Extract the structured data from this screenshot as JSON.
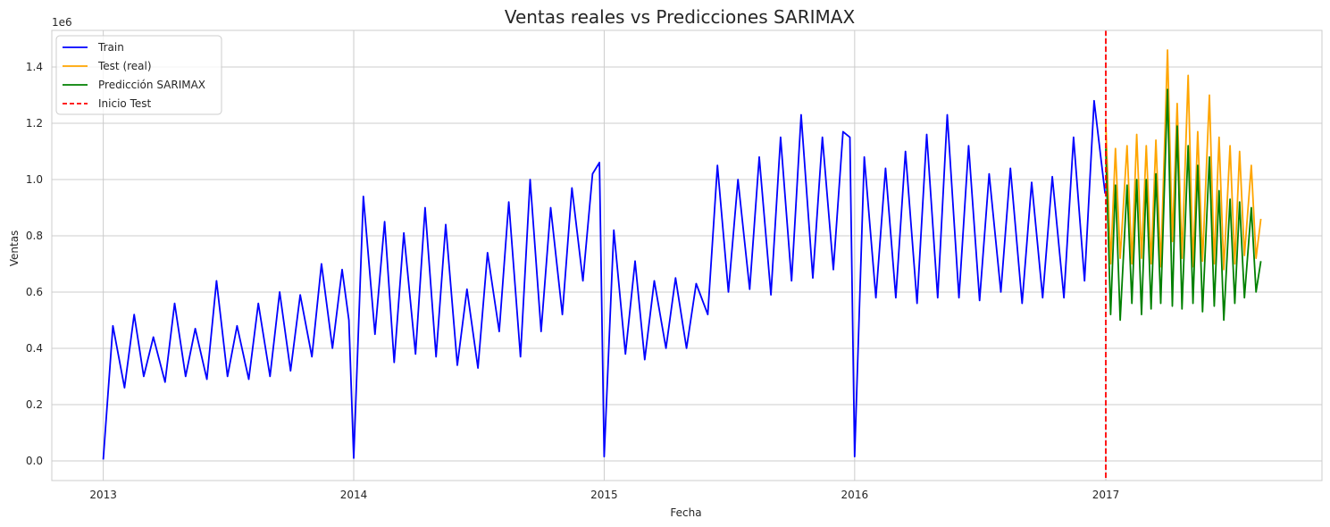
{
  "chart_data": {
    "type": "line",
    "title": "Ventas reales vs Predicciones SARIMAX",
    "xlabel": "Fecha",
    "ylabel": "Ventas",
    "y_offset_label": "1e6",
    "x_ticks": [
      "2013",
      "2014",
      "2015",
      "2016",
      "2017"
    ],
    "y_ticks": [
      "0.0",
      "0.2",
      "0.4",
      "0.6",
      "0.8",
      "1.0",
      "1.2",
      "1.4"
    ],
    "xlim": [
      "2012-10-18",
      "2017-11-12"
    ],
    "ylim": [
      -70000,
      1530000
    ],
    "grid": true,
    "legend_position": "top-left",
    "colors": {
      "train": "#0000ff",
      "test": "#ffa500",
      "prediction": "#008000",
      "start_line": "#ff0000",
      "grid": "#cccccc",
      "axes": "#cccccc"
    },
    "legend": [
      {
        "label": "Train",
        "color": "#0000ff",
        "style": "solid"
      },
      {
        "label": "Test (real)",
        "color": "#ffa500",
        "style": "solid"
      },
      {
        "label": "Predicción SARIMAX",
        "color": "#008000",
        "style": "solid"
      },
      {
        "label": "Inicio Test",
        "color": "#ff0000",
        "style": "dashed"
      }
    ],
    "test_start": "2017-01-01",
    "series": [
      {
        "name": "Train",
        "x": [
          "2013-01-01",
          "2013-01-15",
          "2013-02-01",
          "2013-02-15",
          "2013-03-01",
          "2013-03-15",
          "2013-04-01",
          "2013-04-15",
          "2013-05-01",
          "2013-05-15",
          "2013-06-01",
          "2013-06-15",
          "2013-07-01",
          "2013-07-15",
          "2013-08-01",
          "2013-08-15",
          "2013-09-01",
          "2013-09-15",
          "2013-10-01",
          "2013-10-15",
          "2013-11-01",
          "2013-11-15",
          "2013-12-01",
          "2013-12-15",
          "2013-12-25",
          "2014-01-01",
          "2014-01-15",
          "2014-02-01",
          "2014-02-15",
          "2014-03-01",
          "2014-03-15",
          "2014-04-01",
          "2014-04-15",
          "2014-05-01",
          "2014-05-15",
          "2014-06-01",
          "2014-06-15",
          "2014-07-01",
          "2014-07-15",
          "2014-08-01",
          "2014-08-15",
          "2014-09-01",
          "2014-09-15",
          "2014-10-01",
          "2014-10-15",
          "2014-11-01",
          "2014-11-15",
          "2014-12-01",
          "2014-12-15",
          "2014-12-25",
          "2015-01-01",
          "2015-01-15",
          "2015-02-01",
          "2015-02-15",
          "2015-03-01",
          "2015-03-15",
          "2015-04-01",
          "2015-04-15",
          "2015-05-01",
          "2015-05-15",
          "2015-06-01",
          "2015-06-15",
          "2015-07-01",
          "2015-07-15",
          "2015-08-01",
          "2015-08-15",
          "2015-09-01",
          "2015-09-15",
          "2015-10-01",
          "2015-10-15",
          "2015-11-01",
          "2015-11-15",
          "2015-12-01",
          "2015-12-15",
          "2015-12-25",
          "2016-01-01",
          "2016-01-15",
          "2016-02-01",
          "2016-02-15",
          "2016-03-01",
          "2016-03-15",
          "2016-04-01",
          "2016-04-15",
          "2016-05-01",
          "2016-05-15",
          "2016-06-01",
          "2016-06-15",
          "2016-07-01",
          "2016-07-15",
          "2016-08-01",
          "2016-08-15",
          "2016-09-01",
          "2016-09-15",
          "2016-10-01",
          "2016-10-15",
          "2016-11-01",
          "2016-11-15",
          "2016-12-01",
          "2016-12-15",
          "2016-12-31"
        ],
        "y": [
          5000,
          480000,
          260000,
          520000,
          300000,
          440000,
          280000,
          560000,
          300000,
          470000,
          290000,
          640000,
          300000,
          480000,
          290000,
          560000,
          300000,
          600000,
          320000,
          590000,
          370000,
          700000,
          400000,
          680000,
          500000,
          10000,
          940000,
          450000,
          850000,
          350000,
          810000,
          380000,
          900000,
          370000,
          840000,
          340000,
          610000,
          330000,
          740000,
          460000,
          920000,
          370000,
          1000000,
          460000,
          900000,
          520000,
          970000,
          640000,
          1020000,
          1060000,
          15000,
          820000,
          380000,
          710000,
          360000,
          640000,
          400000,
          650000,
          400000,
          630000,
          520000,
          1050000,
          600000,
          1000000,
          610000,
          1080000,
          590000,
          1150000,
          640000,
          1230000,
          650000,
          1150000,
          680000,
          1170000,
          1150000,
          15000,
          1080000,
          580000,
          1040000,
          580000,
          1100000,
          560000,
          1160000,
          580000,
          1230000,
          580000,
          1120000,
          570000,
          1020000,
          600000,
          1040000,
          560000,
          990000,
          580000,
          1010000,
          580000,
          1150000,
          640000,
          1280000,
          950000
        ]
      },
      {
        "name": "Test (real)",
        "x": [
          "2017-01-01",
          "2017-01-08",
          "2017-01-15",
          "2017-01-22",
          "2017-02-01",
          "2017-02-08",
          "2017-02-15",
          "2017-02-22",
          "2017-03-01",
          "2017-03-08",
          "2017-03-15",
          "2017-03-22",
          "2017-04-01",
          "2017-04-08",
          "2017-04-15",
          "2017-04-22",
          "2017-05-01",
          "2017-05-08",
          "2017-05-15",
          "2017-05-22",
          "2017-06-01",
          "2017-06-08",
          "2017-06-15",
          "2017-06-22",
          "2017-07-01",
          "2017-07-08",
          "2017-07-15",
          "2017-07-22",
          "2017-08-01",
          "2017-08-08",
          "2017-08-15"
        ],
        "y": [
          1200000,
          700000,
          1110000,
          720000,
          1120000,
          700000,
          1160000,
          720000,
          1120000,
          700000,
          1140000,
          690000,
          1460000,
          780000,
          1270000,
          720000,
          1370000,
          690000,
          1170000,
          710000,
          1300000,
          700000,
          1150000,
          680000,
          1120000,
          700000,
          1100000,
          730000,
          1050000,
          720000,
          860000
        ]
      },
      {
        "name": "Predicción SARIMAX",
        "x": [
          "2017-01-01",
          "2017-01-08",
          "2017-01-15",
          "2017-01-22",
          "2017-02-01",
          "2017-02-08",
          "2017-02-15",
          "2017-02-22",
          "2017-03-01",
          "2017-03-08",
          "2017-03-15",
          "2017-03-22",
          "2017-04-01",
          "2017-04-08",
          "2017-04-15",
          "2017-04-22",
          "2017-05-01",
          "2017-05-08",
          "2017-05-15",
          "2017-05-22",
          "2017-06-01",
          "2017-06-08",
          "2017-06-15",
          "2017-06-22",
          "2017-07-01",
          "2017-07-08",
          "2017-07-15",
          "2017-07-22",
          "2017-08-01",
          "2017-08-08",
          "2017-08-15"
        ],
        "y": [
          1110000,
          520000,
          980000,
          500000,
          980000,
          560000,
          1000000,
          520000,
          1000000,
          540000,
          1020000,
          560000,
          1320000,
          550000,
          1190000,
          540000,
          1120000,
          560000,
          1050000,
          530000,
          1080000,
          550000,
          960000,
          500000,
          930000,
          560000,
          920000,
          580000,
          900000,
          600000,
          710000
        ]
      }
    ]
  }
}
